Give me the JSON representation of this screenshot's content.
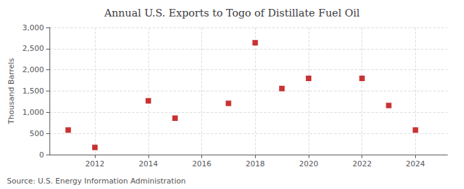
{
  "chart_data": {
    "type": "scatter",
    "title": "Annual U.S. Exports to Togo of Distillate Fuel Oil",
    "ylabel": "Thousand Barrels",
    "annotations": [
      "Source: U.S. Energy Information Administration"
    ],
    "x": [
      2011,
      2012,
      2014,
      2015,
      2017,
      2018,
      2019,
      2020,
      2022,
      2023,
      2024
    ],
    "values": [
      580,
      170,
      1270,
      860,
      1210,
      2640,
      1560,
      1800,
      1800,
      1160,
      580
    ],
    "color": "#BB0000",
    "marker": "square",
    "xlim": [
      2010.3,
      2025.2
    ],
    "xticks": [
      2012,
      2014,
      2016,
      2018,
      2020,
      2022,
      2024
    ],
    "ylim": [
      0,
      3000
    ],
    "yticks": [
      0,
      500,
      {
        "value": 1000,
        "label": "1,000"
      },
      {
        "value": 1500,
        "label": "1,500"
      },
      {
        "value": 2000,
        "label": "2,000"
      },
      {
        "value": 2500,
        "label": "2,500"
      },
      {
        "value": 3000,
        "label": "3,000"
      }
    ],
    "grid": true
  }
}
